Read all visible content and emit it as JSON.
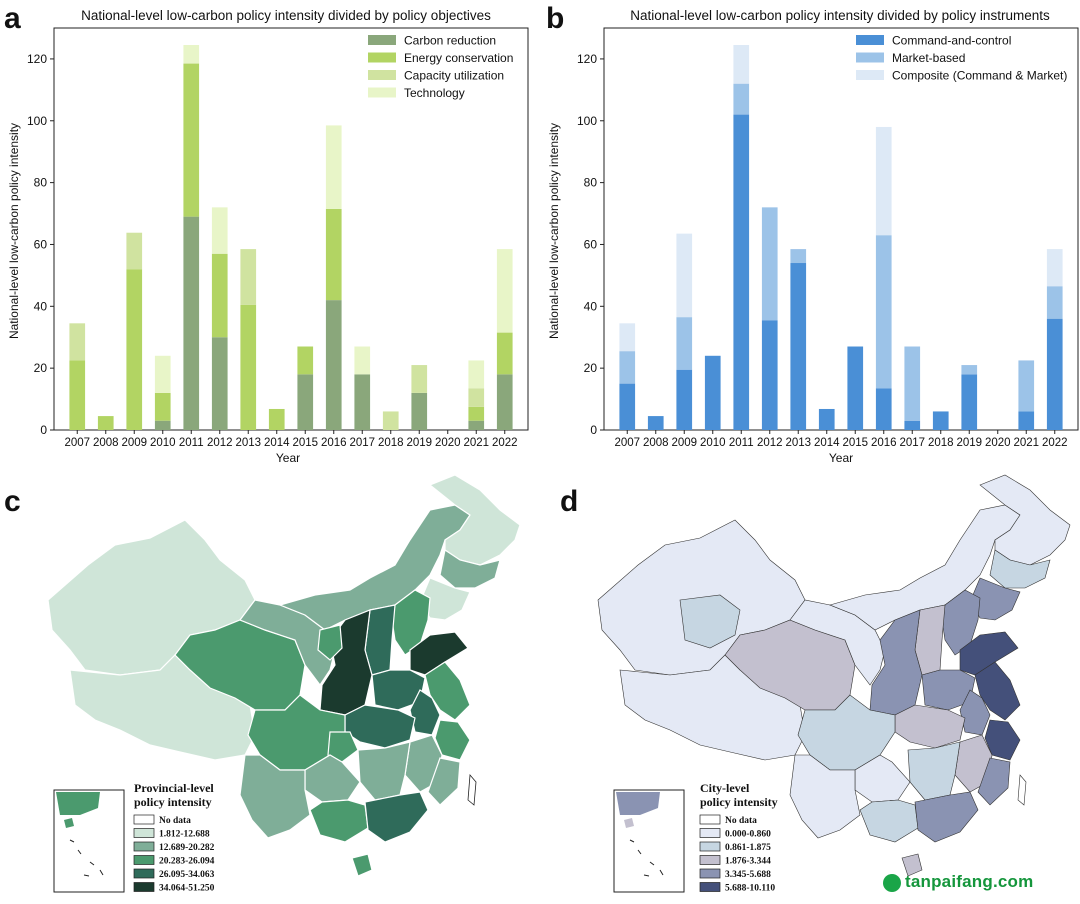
{
  "panels": {
    "a": "a",
    "b": "b",
    "c": "c",
    "d": "d"
  },
  "chart_data": [
    {
      "type": "bar",
      "stacked": true,
      "title": "National-level low-carbon policy intensity divided by policy objectives",
      "xlabel": "Year",
      "ylabel": "National-level low-carbon policy intensity",
      "ylim": [
        0,
        130
      ],
      "yticks": [
        0,
        20,
        40,
        60,
        80,
        100,
        120
      ],
      "grid": false,
      "legend_position": "top-right",
      "categories": [
        "2007",
        "2008",
        "2009",
        "2010",
        "2011",
        "2012",
        "2013",
        "2014",
        "2015",
        "2016",
        "2017",
        "2018",
        "2019",
        "2020",
        "2021",
        "2022"
      ],
      "series": [
        {
          "name": "Carbon reduction",
          "color": "#8aa77b",
          "values": [
            0,
            0,
            0,
            3,
            69,
            30,
            0,
            0,
            18,
            42,
            18,
            0,
            12,
            0,
            3,
            18
          ]
        },
        {
          "name": "Energy conservation",
          "color": "#b2d463",
          "values": [
            22.5,
            4.5,
            52,
            9,
            49.5,
            27,
            40.5,
            6.8,
            9,
            29.5,
            0,
            0,
            0,
            0,
            4.5,
            13.5
          ]
        },
        {
          "name": "Capacity utilization",
          "color": "#d0e3a0",
          "values": [
            12,
            0,
            11.8,
            0,
            0,
            0,
            18,
            0,
            0,
            0,
            0,
            6,
            9,
            0,
            6,
            0
          ]
        },
        {
          "name": "Technology",
          "color": "#e8f5c8",
          "values": [
            0,
            0,
            0,
            12,
            6,
            15,
            0,
            0,
            0,
            27,
            9,
            0,
            0,
            0,
            9,
            27
          ]
        }
      ]
    },
    {
      "type": "bar",
      "stacked": true,
      "title": "National-level low-carbon policy intensity divided by policy instruments",
      "xlabel": "Year",
      "ylabel": "National-level low-carbon policy intensity",
      "ylim": [
        0,
        130
      ],
      "yticks": [
        0,
        20,
        40,
        60,
        80,
        100,
        120
      ],
      "grid": false,
      "legend_position": "top-right",
      "categories": [
        "2007",
        "2008",
        "2009",
        "2010",
        "2011",
        "2012",
        "2013",
        "2014",
        "2015",
        "2016",
        "2017",
        "2018",
        "2019",
        "2020",
        "2021",
        "2022"
      ],
      "series": [
        {
          "name": "Command-and-control",
          "color": "#4a8fd6",
          "values": [
            15,
            4.5,
            19.5,
            24,
            102,
            35.5,
            54,
            6.8,
            27,
            13.5,
            3,
            6,
            18,
            0,
            6,
            36
          ]
        },
        {
          "name": "Market-based",
          "color": "#9cc3e8",
          "values": [
            10.5,
            0,
            17,
            0,
            10,
            36.5,
            4.5,
            0,
            0,
            49.5,
            24,
            0,
            3,
            0,
            16.5,
            10.5
          ]
        },
        {
          "name": "Composite (Command & Market)",
          "color": "#dde9f6",
          "values": [
            9,
            0,
            27,
            0,
            12.5,
            0,
            0,
            0,
            0,
            35,
            0,
            0,
            0,
            0,
            0,
            12
          ]
        }
      ]
    }
  ],
  "map_c": {
    "legend_title": [
      "Provincial-level",
      "policy intensity"
    ],
    "legend_items": [
      {
        "label": "No data",
        "color": "#ffffff"
      },
      {
        "label": "1.812-12.688",
        "color": "#cfe5d8"
      },
      {
        "label": "12.689-20.282",
        "color": "#7fae98"
      },
      {
        "label": "20.283-26.094",
        "color": "#4b9a6e"
      },
      {
        "label": "26.095-34.063",
        "color": "#2f6b5a"
      },
      {
        "label": "34.064-51.250",
        "color": "#1b3a2e"
      }
    ]
  },
  "map_d": {
    "legend_title": [
      "City-level",
      "policy intensity"
    ],
    "legend_items": [
      {
        "label": "No data",
        "color": "#ffffff"
      },
      {
        "label": "0.000-0.860",
        "color": "#e4e9f5"
      },
      {
        "label": "0.861-1.875",
        "color": "#c6d6e2"
      },
      {
        "label": "1.876-3.344",
        "color": "#c3c0cf"
      },
      {
        "label": "3.345-5.688",
        "color": "#8a93b2"
      },
      {
        "label": "5.688-10.110",
        "color": "#44507a"
      }
    ]
  },
  "watermark": "tanpaifang.com"
}
